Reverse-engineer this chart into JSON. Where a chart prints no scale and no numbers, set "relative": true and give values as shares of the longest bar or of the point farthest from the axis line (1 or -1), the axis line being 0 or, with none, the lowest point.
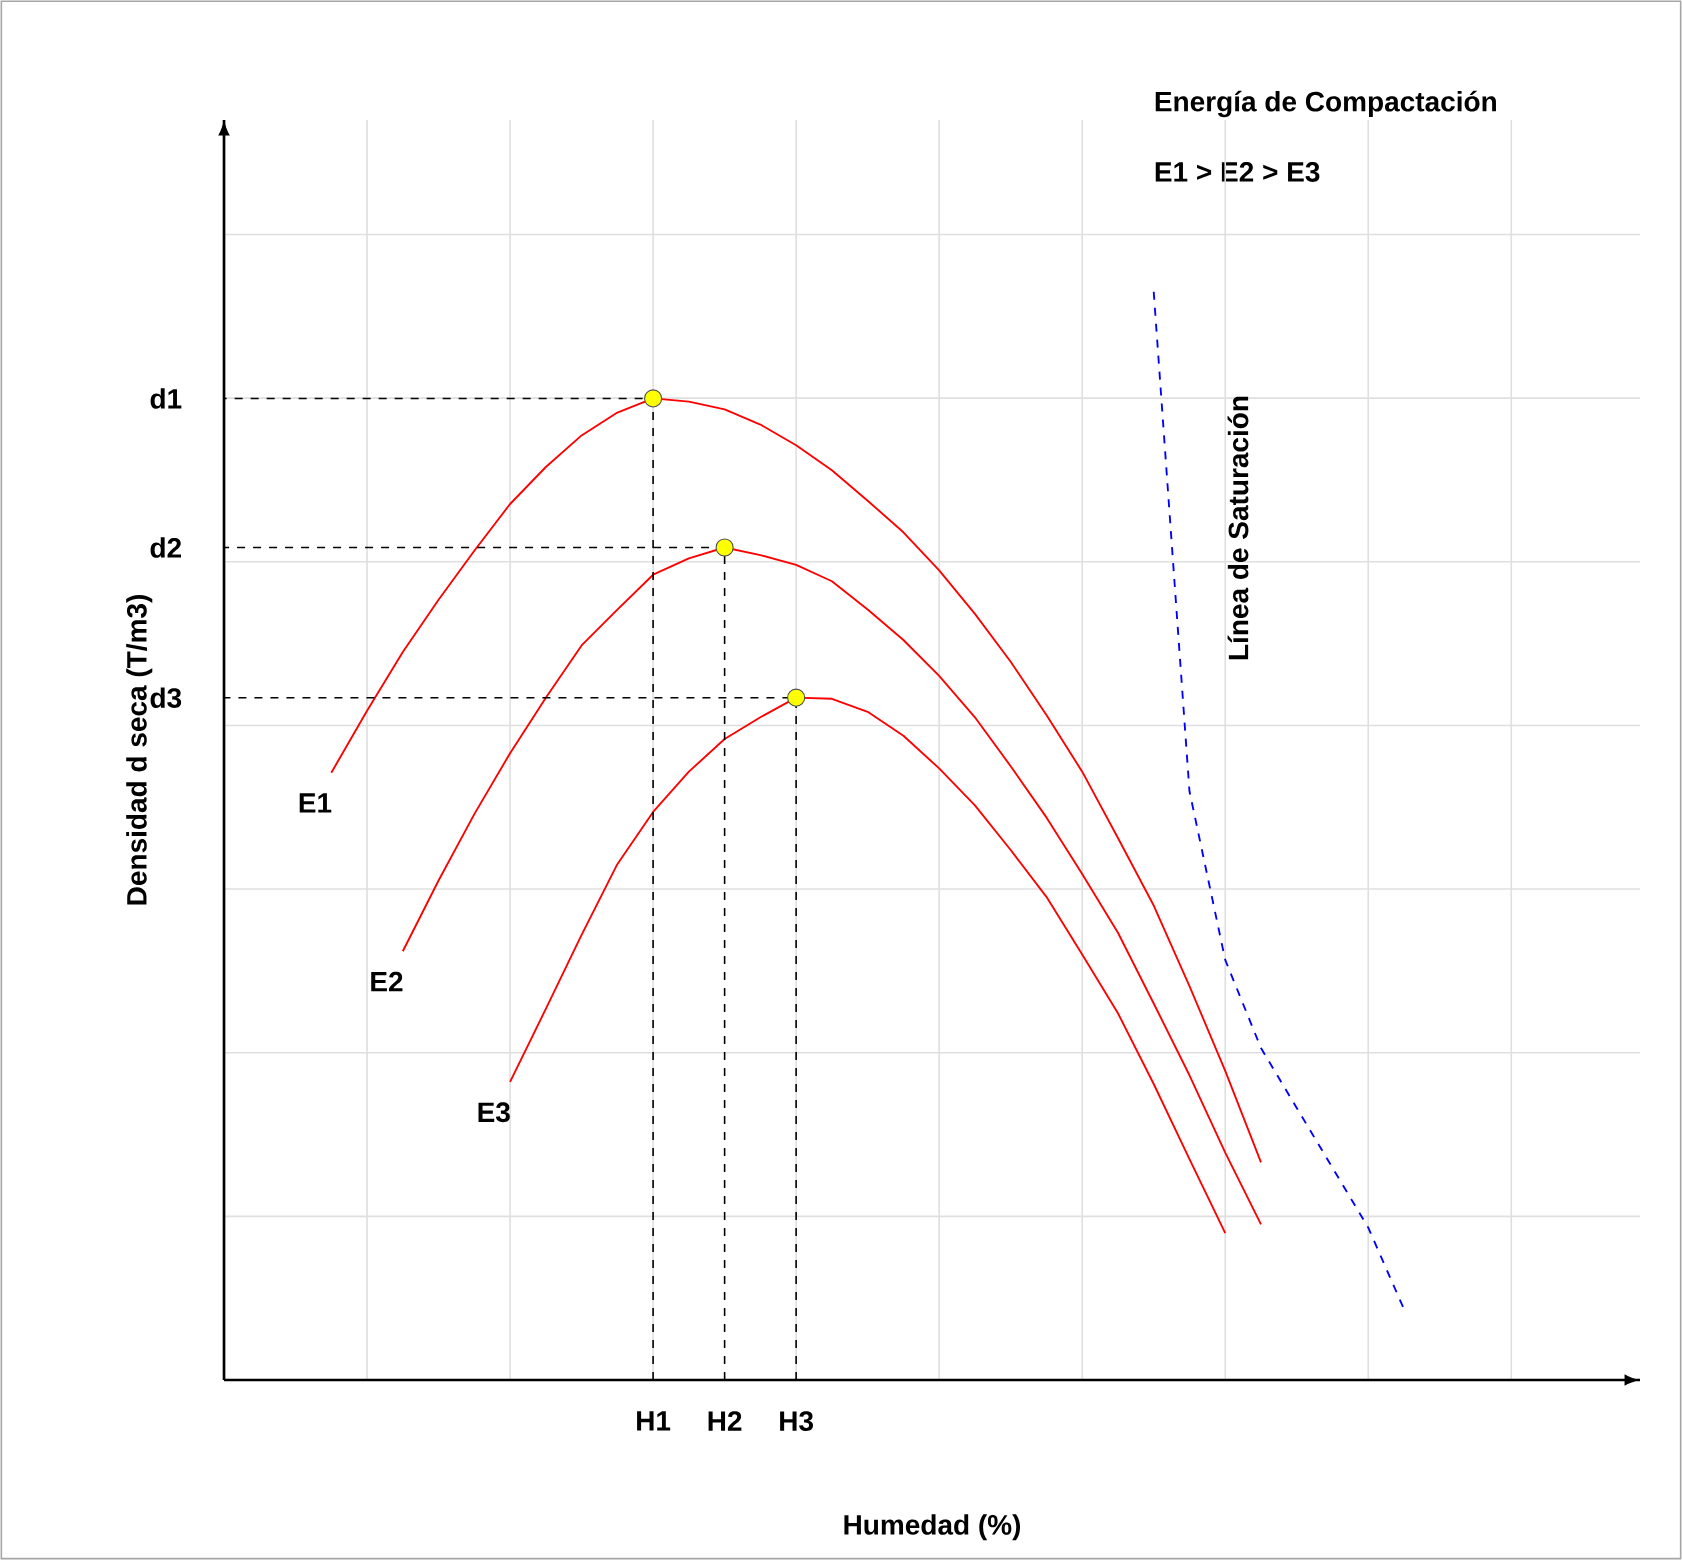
{
  "chart_data": {
    "type": "line",
    "title": "Energía de Compactación",
    "subtitle": "E1 > E2 > E3",
    "xlabel": "Humedad (%)",
    "ylabel": "Densidad d seca (T/m3)",
    "relative": true,
    "grid": true,
    "line_style": "solid",
    "annotations": [
      "d1",
      "d2",
      "d3"
    ],
    "categories": [
      null,
      null,
      null,
      null,
      null,
      null,
      null,
      null,
      null,
      null,
      null,
      null,
      "H1",
      null,
      "H2",
      null,
      "H3",
      null,
      null,
      null,
      null,
      null,
      null,
      null,
      null,
      null,
      null,
      null,
      null,
      null,
      null,
      null,
      null,
      null,
      null,
      null,
      null,
      null,
      null,
      null
    ],
    "series": [
      {
        "name": "E1",
        "color": "#ff0000",
        "values": [
          null,
          null,
          null,
          0.558,
          0.615,
          0.669,
          0.717,
          0.762,
          0.805,
          0.839,
          0.868,
          0.889,
          0.902,
          0.899,
          0.892,
          0.878,
          0.859,
          0.836,
          0.808,
          0.779,
          0.744,
          0.704,
          0.66,
          0.611,
          0.559,
          0.498,
          0.436,
          0.362,
          0.284,
          0.2,
          null,
          null,
          null,
          null,
          null,
          null,
          null,
          null,
          null,
          null
        ]
      },
      {
        "name": "E2",
        "color": "#ff0000",
        "values": [
          null,
          null,
          null,
          null,
          null,
          0.394,
          0.459,
          0.52,
          0.576,
          0.627,
          0.675,
          0.708,
          0.74,
          0.755,
          0.765,
          0.758,
          0.749,
          0.734,
          0.708,
          0.68,
          0.647,
          0.609,
          0.564,
          0.517,
          0.465,
          0.411,
          0.346,
          0.28,
          0.209,
          0.143,
          null,
          null,
          null,
          null,
          null,
          null,
          null,
          null,
          null,
          null
        ]
      },
      {
        "name": "E3",
        "color": "#ff0000",
        "values": [
          null,
          null,
          null,
          null,
          null,
          null,
          null,
          null,
          0.274,
          0.341,
          0.409,
          0.474,
          0.522,
          0.559,
          0.589,
          0.609,
          0.627,
          0.626,
          0.614,
          0.592,
          0.562,
          0.528,
          0.487,
          0.444,
          0.391,
          0.337,
          0.272,
          0.203,
          0.135,
          null,
          null,
          null,
          null,
          null,
          null,
          null,
          null,
          null,
          null,
          null
        ]
      },
      {
        "name": "Línea de Saturación",
        "color": "#0000ff",
        "line_style": "dashed",
        "values": [
          null,
          null,
          null,
          null,
          null,
          null,
          null,
          null,
          null,
          null,
          null,
          null,
          null,
          null,
          null,
          null,
          null,
          null,
          null,
          null,
          null,
          null,
          null,
          null,
          null,
          null,
          1,
          0.541,
          0.386,
          0.305,
          0.25,
          0.195,
          0.14,
          0.065,
          null,
          null,
          null,
          null,
          null,
          null
        ]
      },
      {
        "type": "scatter",
        "marker": "circle",
        "color": "#ffff00",
        "values": [
          null,
          null,
          null,
          null,
          null,
          null,
          null,
          null,
          null,
          null,
          null,
          null,
          0.902,
          null,
          0.765,
          null,
          0.627,
          null,
          null,
          null,
          null,
          null,
          null,
          null,
          null,
          null,
          null,
          null,
          null,
          null,
          null,
          null,
          null,
          null,
          null,
          null,
          null,
          null,
          null,
          null
        ]
      }
    ]
  }
}
